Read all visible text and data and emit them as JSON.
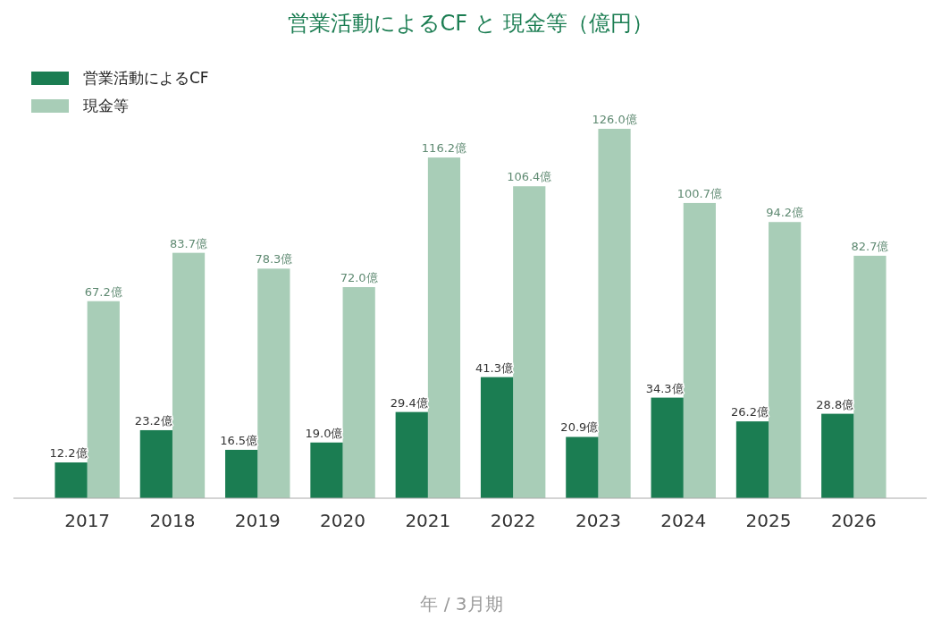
{
  "chart_data": {
    "type": "bar",
    "title": "営業活動によるCF と 現金等（億円）",
    "xlabel": "年 / 3月期",
    "categories": [
      "2017",
      "2018",
      "2019",
      "2020",
      "2021",
      "2022",
      "2023",
      "2024",
      "2025",
      "2026"
    ],
    "series": [
      {
        "name": "営業活動によるCF",
        "color": "#1b7d52",
        "values": [
          12.2,
          23.2,
          16.5,
          19.0,
          29.4,
          41.3,
          20.9,
          34.3,
          26.2,
          28.8
        ],
        "value_labels": [
          "12.2億",
          "23.2億",
          "16.5億",
          "19.0億",
          "29.4億",
          "41.3億",
          "20.9億",
          "34.3億",
          "26.2億",
          "28.8億"
        ]
      },
      {
        "name": "現金等",
        "color": "#a8cdb7",
        "values": [
          67.2,
          83.7,
          78.3,
          72.0,
          116.2,
          106.4,
          126.0,
          100.7,
          94.2,
          82.7
        ],
        "value_labels": [
          "67.2億",
          "83.7億",
          "78.3億",
          "72.0億",
          "116.2億",
          "106.4億",
          "126.0億",
          "100.7億",
          "94.2億",
          "82.7億"
        ]
      }
    ],
    "legend": "top left",
    "grid": false
  }
}
